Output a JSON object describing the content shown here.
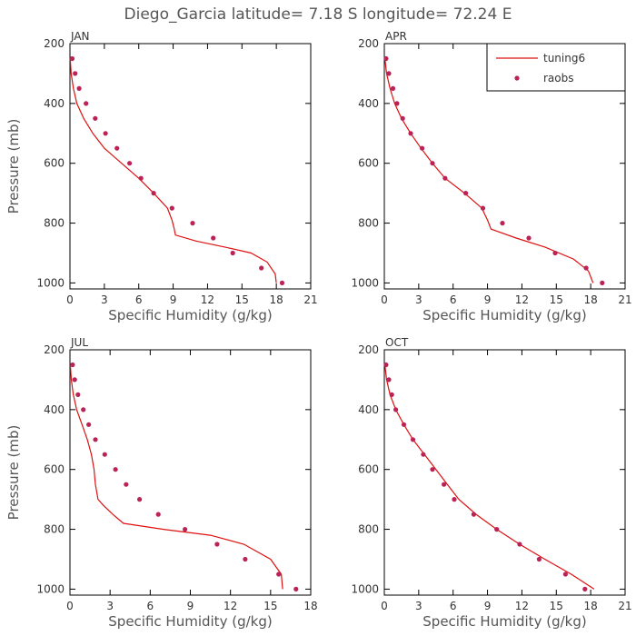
{
  "figure": {
    "title": "Diego_Garcia  latitude= 7.18 S longitude= 72.24 E"
  },
  "colors": {
    "model": "#dd1111",
    "obs": "#bb2255",
    "frame": "#000000",
    "text": "#555555"
  },
  "legend": {
    "model_label": "tuning6",
    "obs_label": "raobs",
    "placement": "top-right of APR panel"
  },
  "chart_data": [
    {
      "type": "line",
      "panel_label": "JAN",
      "xlabel": "Specific Humidity (g/kg)",
      "ylabel": "Pressure (mb)",
      "xlim": [
        0,
        21
      ],
      "ylim": [
        1020,
        200
      ],
      "xticks": [
        0,
        3,
        6,
        9,
        12,
        15,
        18,
        21
      ],
      "yticks": [
        200,
        400,
        600,
        800,
        1000
      ],
      "series": [
        {
          "name": "tuning6",
          "style": "line",
          "x": [
            0.02,
            0.1,
            0.3,
            0.6,
            1.2,
            2.0,
            3.0,
            4.5,
            6.0,
            7.3,
            8.5,
            8.9,
            9.1,
            9.2,
            11.0,
            13.5,
            15.8,
            17.2,
            17.9,
            18.0
          ],
          "y": [
            250,
            300,
            350,
            400,
            450,
            500,
            550,
            600,
            650,
            700,
            750,
            790,
            820,
            840,
            860,
            880,
            900,
            930,
            970,
            1000
          ]
        },
        {
          "name": "raobs",
          "style": "points",
          "x": [
            0.2,
            0.45,
            0.8,
            1.4,
            2.2,
            3.1,
            4.1,
            5.2,
            6.2,
            7.3,
            8.9,
            10.7,
            12.5,
            14.2,
            16.7,
            18.5
          ],
          "y": [
            250,
            300,
            350,
            400,
            450,
            500,
            550,
            600,
            650,
            700,
            750,
            800,
            850,
            900,
            950,
            1000
          ]
        }
      ]
    },
    {
      "type": "line",
      "panel_label": "APR",
      "xlabel": "Specific Humidity (g/kg)",
      "ylabel": "",
      "xlim": [
        0,
        21
      ],
      "ylim": [
        1020,
        200
      ],
      "xticks": [
        0,
        3,
        6,
        9,
        12,
        15,
        18,
        21
      ],
      "yticks": [
        200,
        400,
        600,
        800,
        1000
      ],
      "series": [
        {
          "name": "tuning6",
          "style": "line",
          "x": [
            0.05,
            0.2,
            0.5,
            0.9,
            1.5,
            2.3,
            3.2,
            4.2,
            5.3,
            7.0,
            8.5,
            9.0,
            9.3,
            11.5,
            14.0,
            16.5,
            17.8,
            18.2
          ],
          "y": [
            250,
            300,
            350,
            400,
            450,
            500,
            550,
            600,
            650,
            700,
            750,
            790,
            820,
            850,
            880,
            920,
            960,
            1000
          ]
        },
        {
          "name": "raobs",
          "style": "points",
          "x": [
            0.15,
            0.4,
            0.75,
            1.1,
            1.6,
            2.3,
            3.3,
            4.2,
            5.3,
            7.1,
            8.6,
            10.3,
            12.6,
            14.9,
            17.6,
            19.0
          ],
          "y": [
            250,
            300,
            350,
            400,
            450,
            500,
            550,
            600,
            650,
            700,
            750,
            800,
            850,
            900,
            950,
            1000
          ]
        }
      ]
    },
    {
      "type": "line",
      "panel_label": "JUL",
      "xlabel": "Specific Humidity (g/kg)",
      "ylabel": "Pressure (mb)",
      "xlim": [
        0,
        18
      ],
      "ylim": [
        1020,
        200
      ],
      "xticks": [
        0,
        3,
        6,
        9,
        12,
        15,
        18
      ],
      "yticks": [
        200,
        400,
        600,
        800,
        1000
      ],
      "series": [
        {
          "name": "tuning6",
          "style": "line",
          "x": [
            0.03,
            0.1,
            0.25,
            0.5,
            0.9,
            1.3,
            1.6,
            1.8,
            1.9,
            2.1,
            2.5,
            3.2,
            4.0,
            7.0,
            10.5,
            13.0,
            15.0,
            15.8,
            15.9
          ],
          "y": [
            250,
            300,
            350,
            400,
            450,
            500,
            550,
            600,
            650,
            700,
            720,
            750,
            780,
            800,
            820,
            850,
            900,
            950,
            1000
          ]
        },
        {
          "name": "raobs",
          "style": "points",
          "x": [
            0.2,
            0.35,
            0.6,
            1.0,
            1.4,
            1.9,
            2.6,
            3.4,
            4.2,
            5.2,
            6.6,
            8.6,
            11.0,
            13.1,
            15.6,
            16.9
          ],
          "y": [
            250,
            300,
            350,
            400,
            450,
            500,
            550,
            600,
            650,
            700,
            750,
            800,
            850,
            900,
            950,
            1000
          ]
        }
      ]
    },
    {
      "type": "line",
      "panel_label": "OCT",
      "xlabel": "Specific Humidity (g/kg)",
      "ylabel": "",
      "xlim": [
        0,
        21
      ],
      "ylim": [
        1020,
        200
      ],
      "xticks": [
        0,
        3,
        6,
        9,
        12,
        15,
        18,
        21
      ],
      "yticks": [
        200,
        400,
        600,
        800,
        1000
      ],
      "series": [
        {
          "name": "tuning6",
          "style": "line",
          "x": [
            0.05,
            0.2,
            0.5,
            1.0,
            1.7,
            2.5,
            3.5,
            4.5,
            5.5,
            6.5,
            8.0,
            9.8,
            11.8,
            14.0,
            16.3,
            17.9,
            18.3
          ],
          "y": [
            250,
            300,
            350,
            400,
            450,
            500,
            550,
            600,
            650,
            700,
            750,
            800,
            850,
            900,
            950,
            990,
            1000
          ]
        },
        {
          "name": "raobs",
          "style": "points",
          "x": [
            0.15,
            0.4,
            0.65,
            1.0,
            1.7,
            2.5,
            3.4,
            4.2,
            5.2,
            6.1,
            7.8,
            9.8,
            11.8,
            13.5,
            15.8,
            17.5
          ],
          "y": [
            250,
            300,
            350,
            400,
            450,
            500,
            550,
            600,
            650,
            700,
            750,
            800,
            850,
            900,
            950,
            1000
          ]
        }
      ]
    }
  ]
}
